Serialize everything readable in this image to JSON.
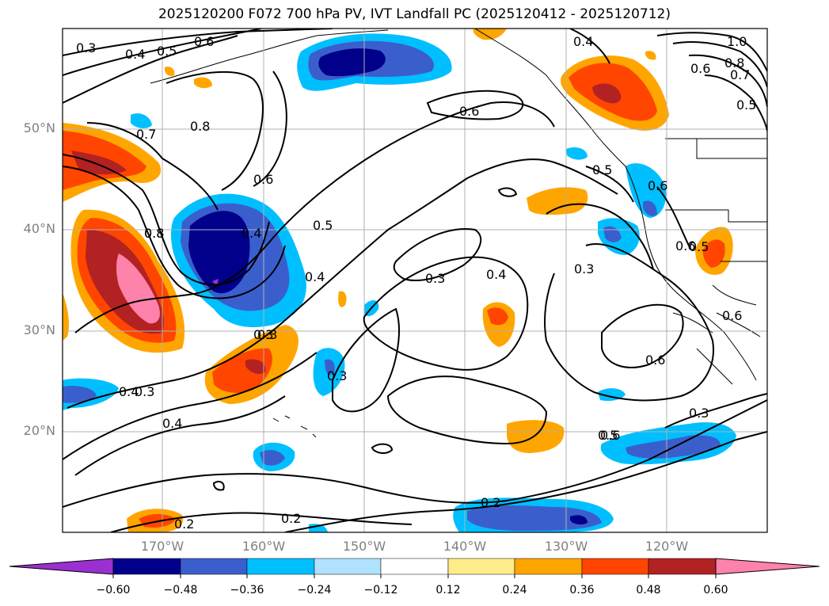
{
  "title": "2025120200 F072 700 hPa PV, IVT Landfall PC (2025120412 - 2025120712)",
  "lat_labels": [
    "50°N",
    "40°N",
    "30°N",
    "20°N"
  ],
  "lon_labels": [
    "170°W",
    "160°W",
    "150°W",
    "140°W",
    "130°W",
    "120°W"
  ],
  "contour_labels": [
    "0.3",
    "0.4",
    "0.5",
    "0.6",
    "0.7",
    "0.8",
    "0.8",
    "0.6",
    "0.6",
    "0.5",
    "0.4",
    "0.8",
    "0.4",
    "0.3",
    "0.4",
    "0.3",
    "0.3",
    "0.2",
    "0.2",
    "0.3",
    "0.3",
    "0.4",
    "0.6",
    "0.4",
    "0.5",
    "0.6",
    "0.7",
    "0.8",
    "1.0",
    "0.5",
    "0.6",
    "0.5",
    "0.6",
    "0.6",
    "0.6",
    "0.3",
    "0.2",
    "0.4",
    "0.3",
    "0.5"
  ],
  "colorbar": {
    "ticks": [
      "−0.60",
      "−0.48",
      "−0.36",
      "−0.24",
      "−0.12",
      "0.12",
      "0.24",
      "0.36",
      "0.48",
      "0.60"
    ],
    "colors": [
      "#9b30d0",
      "#00008b",
      "#3a5fcd",
      "#00bfff",
      "#b0e2ff",
      "#ffffff",
      "#ffec8b",
      "#ffa500",
      "#ff4500",
      "#b22222",
      "#ff82ab"
    ]
  },
  "legend_colors": {
    "neg_060": "#9b30d0",
    "neg_048": "#00008b",
    "neg_036": "#3a5fcd",
    "neg_024": "#00bfff",
    "neg_012": "#b0e2ff",
    "pos_012": "#ffec8b",
    "pos_024": "#ffa500",
    "pos_036": "#ff4500",
    "pos_048": "#b22222",
    "pos_060": "#ff82ab"
  }
}
